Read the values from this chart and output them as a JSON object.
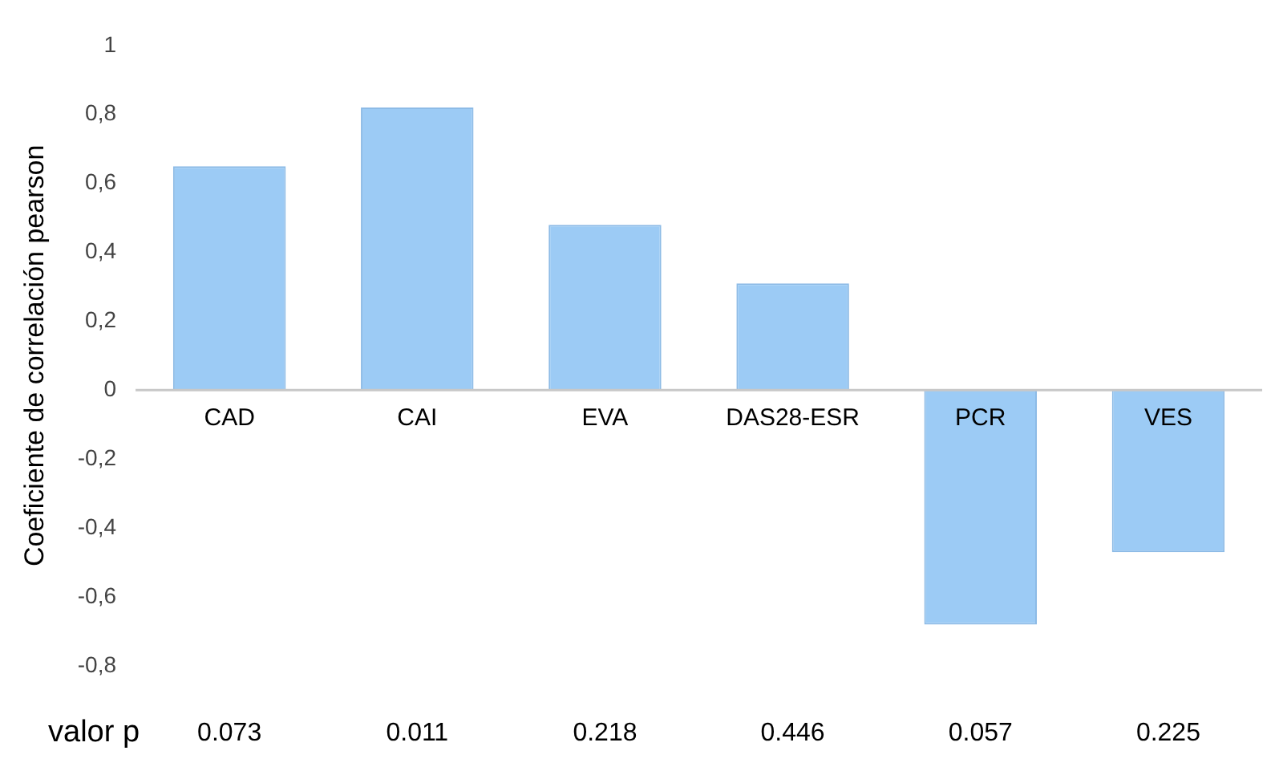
{
  "chart_data": {
    "type": "bar",
    "ylabel": "Coeficiente de correlación pearson",
    "categories": [
      "CAD",
      "CAI",
      "EVA",
      "DAS28-ESR",
      "PCR",
      "VES"
    ],
    "values": [
      0.65,
      0.82,
      0.48,
      0.31,
      -0.68,
      -0.47
    ],
    "color": "#9ccbf5",
    "ylim": [
      -0.8,
      1
    ],
    "yticks": [
      {
        "value": -0.8,
        "label": "-0,8"
      },
      {
        "value": -0.6,
        "label": "-0,6"
      },
      {
        "value": -0.4,
        "label": "-0,4"
      },
      {
        "value": -0.2,
        "label": "-0,2"
      },
      0,
      {
        "value": 0.2,
        "label": "0,2"
      },
      {
        "value": 0.4,
        "label": "0,4"
      },
      {
        "value": 0.6,
        "label": "0,6"
      },
      {
        "value": 0.8,
        "label": "0,8"
      },
      1
    ],
    "grid": false,
    "legend": false,
    "annotations": [
      "valor p",
      "0.073",
      "0.011",
      "0.218",
      "0.446",
      "0.057",
      "0.225"
    ]
  }
}
